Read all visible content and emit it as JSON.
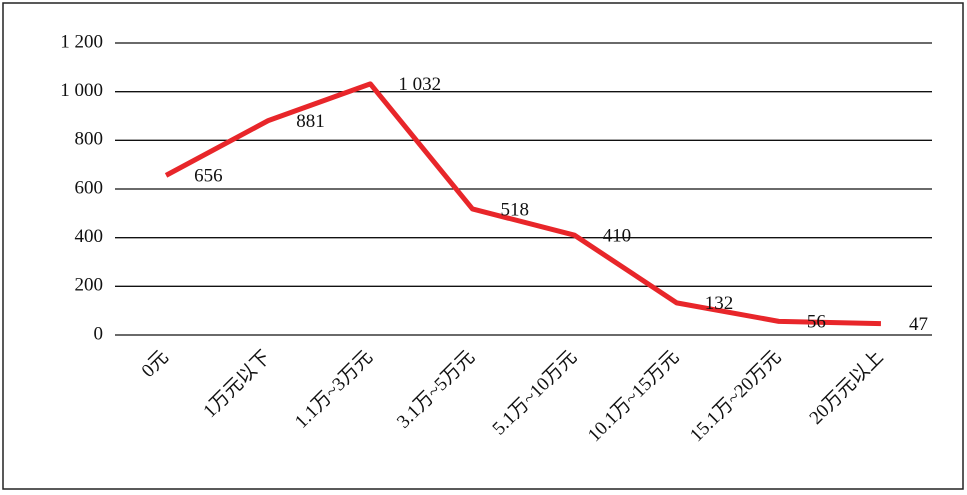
{
  "chart_data": {
    "type": "line",
    "categories": [
      "0元",
      "1万元以下",
      "1.1万~3万元",
      "3.1万~5万元",
      "5.1万~10万元",
      "10.1万~15万元",
      "15.1万~20万元",
      "20万元以上"
    ],
    "values": [
      656,
      881,
      1032,
      518,
      410,
      132,
      56,
      47
    ],
    "value_labels": [
      "656",
      "881",
      "1 032",
      "518",
      "410",
      "132",
      "56",
      "47"
    ],
    "color": "#e8262a",
    "ylim": [
      0,
      1200
    ],
    "yticks": [
      0,
      200,
      400,
      600,
      800,
      {
        "value": 1000,
        "label": "1 000"
      },
      {
        "value": 1200,
        "label": "1 200"
      }
    ],
    "grid": true
  }
}
